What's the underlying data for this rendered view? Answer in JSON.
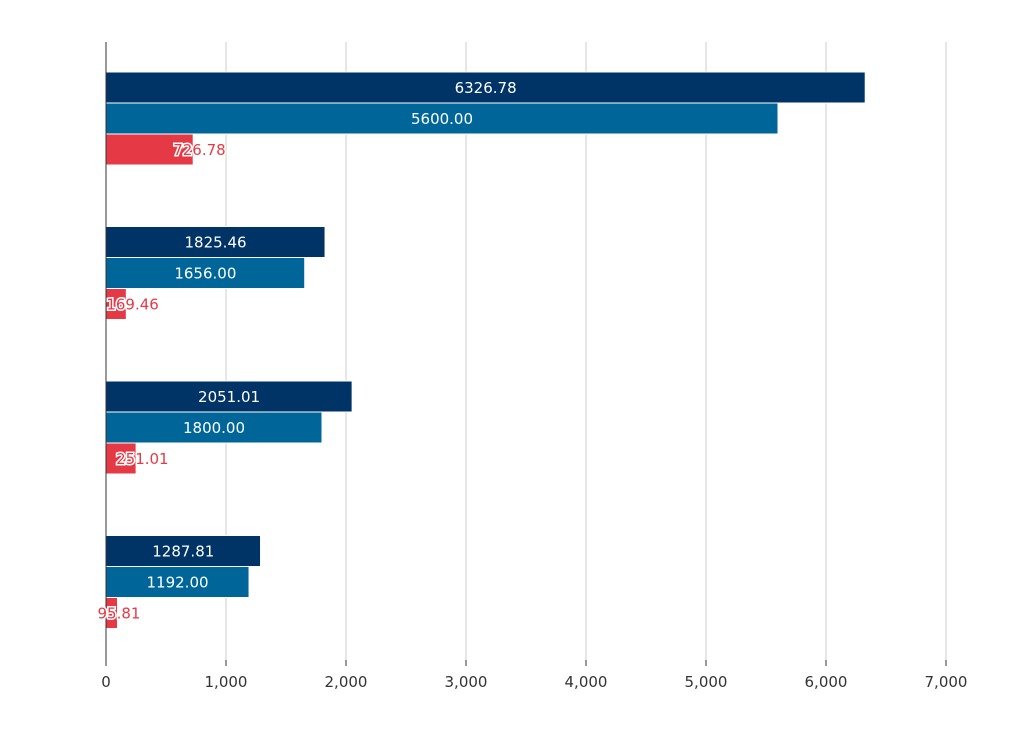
{
  "chart_data": {
    "type": "bar",
    "orientation": "horizontal",
    "title": "",
    "xlabel": "",
    "ylabel": "",
    "xlim": [
      0,
      7000
    ],
    "xticks": [
      0,
      1000,
      2000,
      3000,
      4000,
      5000,
      6000,
      7000
    ],
    "xtick_labels": [
      "0",
      "1,000",
      "2,000",
      "3,000",
      "4,000",
      "5,000",
      "6,000",
      "7,000"
    ],
    "grid": true,
    "legend": "none",
    "categories": [
      "",
      "",
      "",
      ""
    ],
    "series": [
      {
        "color": "#003366",
        "values": [
          6326.78,
          1825.46,
          2051.01,
          1287.81
        ],
        "labels": [
          "6326.78",
          "1825.46",
          "2051.01",
          "1287.81"
        ]
      },
      {
        "color": "#006699",
        "values": [
          5600.0,
          1656.0,
          1800.0,
          1192.0
        ],
        "labels": [
          "5600.00",
          "1656.00",
          "1800.00",
          "1192.00"
        ]
      },
      {
        "color": "#e63946",
        "values": [
          726.78,
          169.46,
          251.01,
          95.81
        ],
        "labels": [
          "726.78",
          "169.46",
          "251.01",
          "95.81"
        ]
      }
    ]
  }
}
